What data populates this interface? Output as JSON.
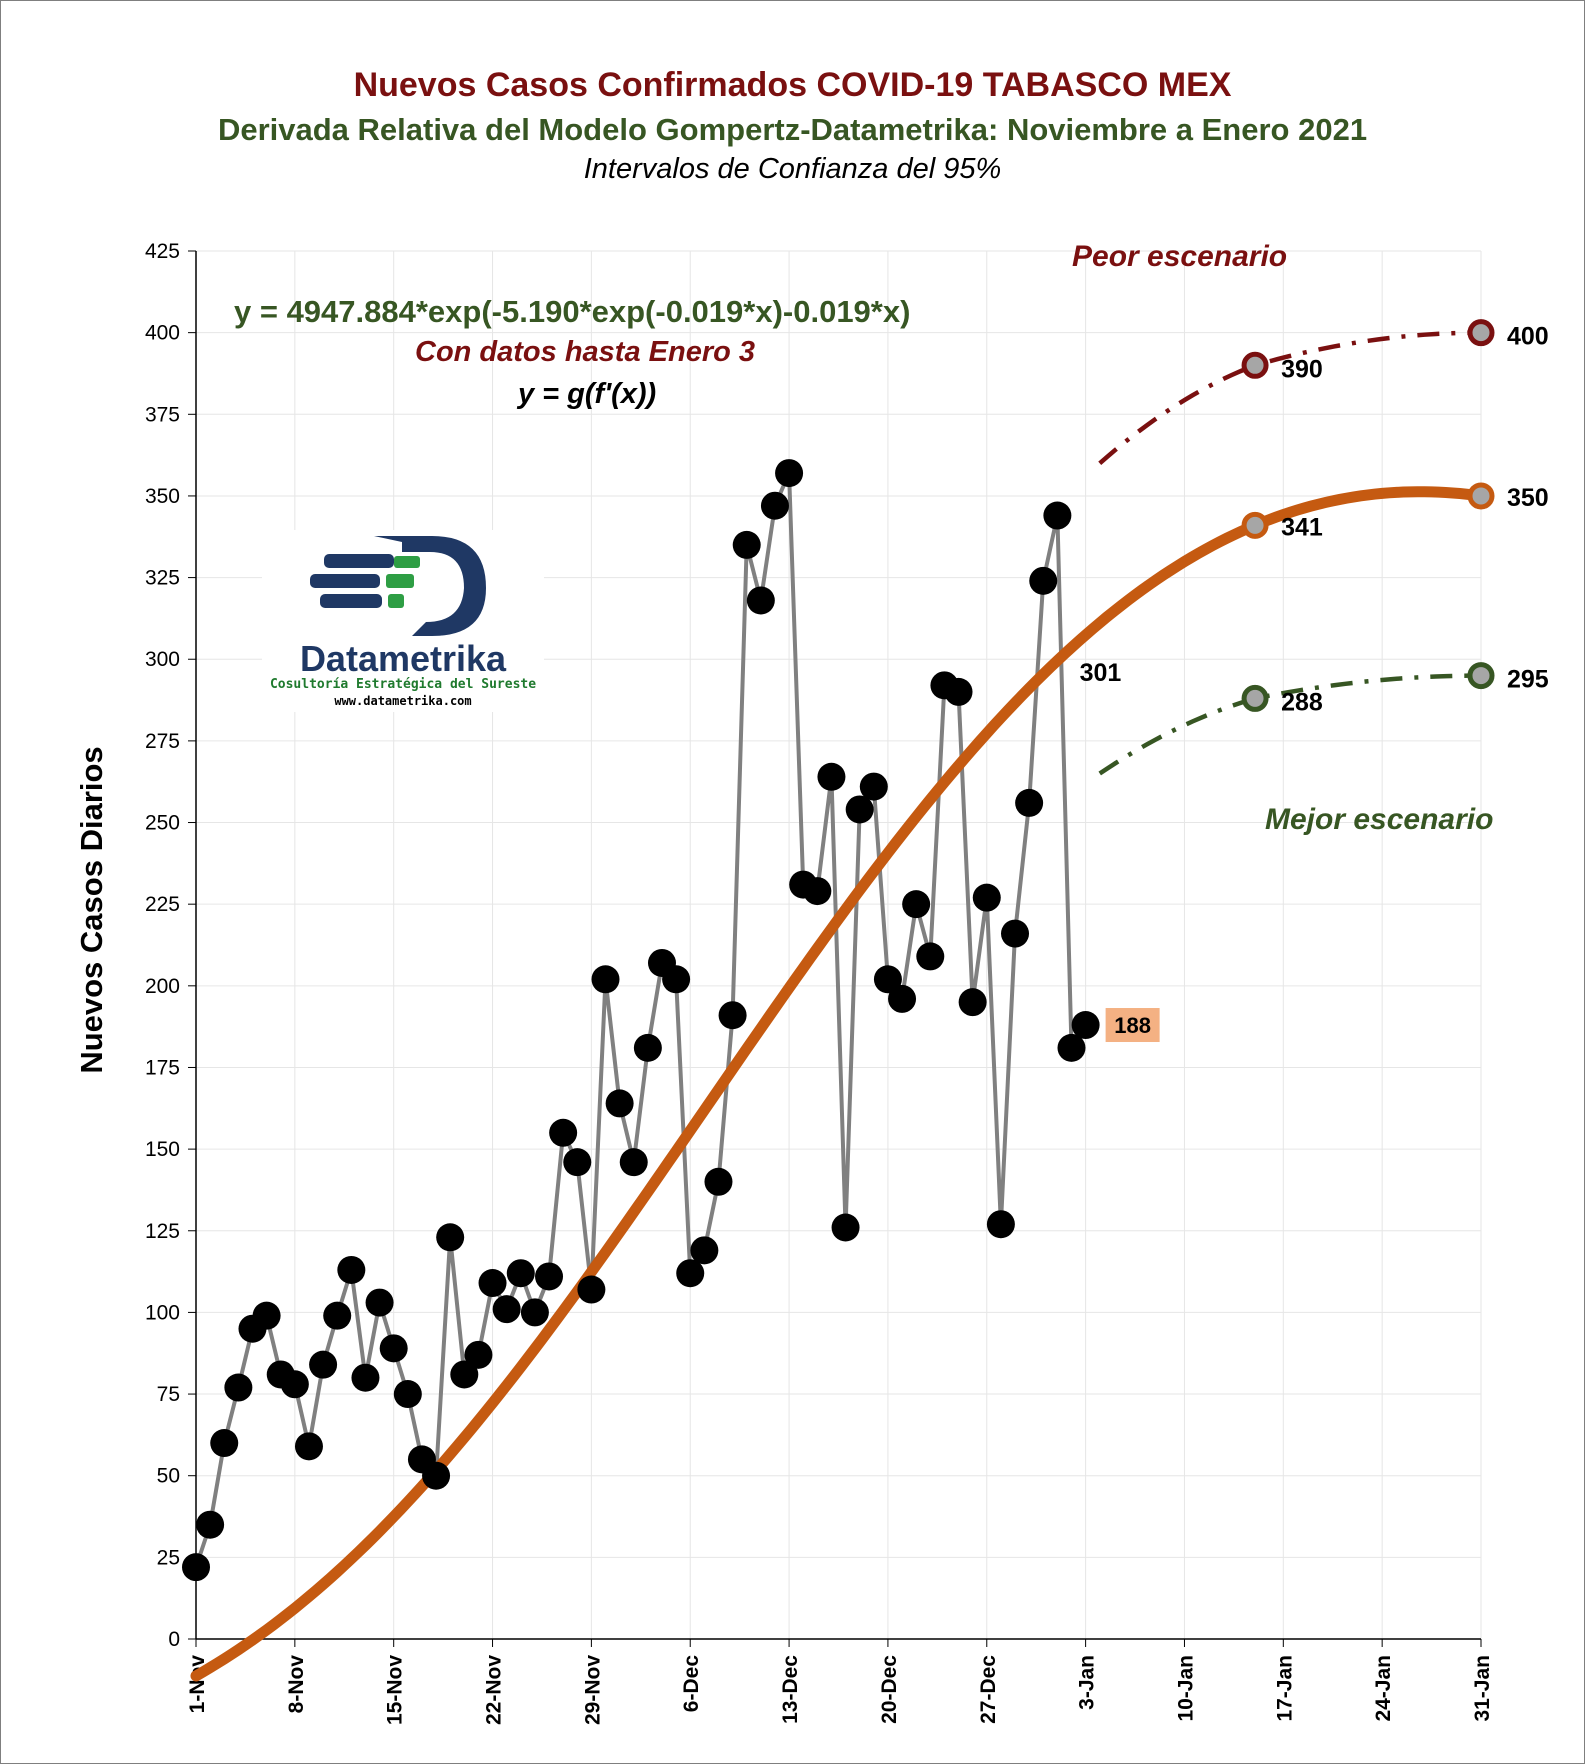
{
  "chart": {
    "title": "Nuevos Casos Confirmados COVID-19 TABASCO MEX",
    "subtitle": "Derivada Relativa del Modelo Gompertz-Datametrika: Noviembre a Enero 2021",
    "subtitle2": "Intervalos de Confianza del 95%",
    "ylabel": "Nuevos Casos Diarios",
    "equation": "y = 4947.884*exp(-5.190*exp(-0.019*x)-0.019*x)",
    "equation_note": "Con datos hasta Enero 3",
    "equation_note2": "y = g(f'(x))",
    "worst_label": "Peor escenario",
    "best_label": "Mejor escenario"
  },
  "logo": {
    "name": "Datametrika",
    "tagline": "Cosultoría Estratégica del Sureste",
    "url": "www.datametrika.com"
  },
  "colors": {
    "observed_line": "#808080",
    "observed_marker": "#000000",
    "fit": "#c55a11",
    "worst": "#7a1010",
    "best": "#375623",
    "last_label_bg": "#f4b183"
  },
  "chart_data": {
    "type": "line",
    "ylim": [
      0,
      425
    ],
    "yticks": [
      0,
      25,
      50,
      75,
      100,
      125,
      150,
      175,
      200,
      225,
      250,
      275,
      300,
      325,
      350,
      375,
      400,
      425
    ],
    "x_tick_labels": [
      "1-Nov",
      "8-Nov",
      "15-Nov",
      "22-Nov",
      "29-Nov",
      "6-Dec",
      "13-Dec",
      "20-Dec",
      "27-Dec",
      "3-Jan",
      "10-Jan",
      "17-Jan",
      "24-Jan",
      "31-Jan"
    ],
    "x_day_range": [
      0,
      91
    ],
    "grid": true,
    "series": [
      {
        "name": "",
        "kind": "observed",
        "values": [
          22,
          35,
          60,
          77,
          95,
          99,
          81,
          78,
          59,
          84,
          99,
          113,
          80,
          103,
          89,
          75,
          55,
          50,
          123,
          81,
          87,
          109,
          101,
          112,
          100,
          111,
          155,
          146,
          107,
          202,
          164,
          146,
          181,
          207,
          202,
          112,
          119,
          140,
          191,
          335,
          318,
          347,
          357,
          231,
          229,
          264,
          126,
          254,
          261,
          202,
          196,
          225,
          209,
          292,
          290,
          195,
          227,
          127,
          216,
          256,
          324,
          344,
          181,
          188
        ]
      },
      {
        "name": "",
        "kind": "fit",
        "formula": "y = 4947.884*exp(-5.190*exp(-0.019*x)-0.019*x)",
        "x_start": 0,
        "x_end": 91,
        "point_labels": [
          {
            "x": 63,
            "label": "301"
          },
          {
            "x": 75,
            "label": "341"
          },
          {
            "x": 91,
            "label": "350"
          }
        ],
        "values_at": [
          {
            "x": 75,
            "y": 341
          },
          {
            "x": 91,
            "y": 350
          }
        ]
      },
      {
        "name": "",
        "kind": "worst_case",
        "points": [
          {
            "x": 64,
            "y": 360
          },
          {
            "x": 75,
            "y": 390
          },
          {
            "x": 91,
            "y": 400
          }
        ],
        "labels": [
          "390",
          "400"
        ]
      },
      {
        "name": "",
        "kind": "best_case",
        "points": [
          {
            "x": 64,
            "y": 265
          },
          {
            "x": 75,
            "y": 288
          },
          {
            "x": 91,
            "y": 295
          }
        ],
        "labels": [
          "288",
          "295"
        ]
      }
    ],
    "last_value_label": "188"
  }
}
